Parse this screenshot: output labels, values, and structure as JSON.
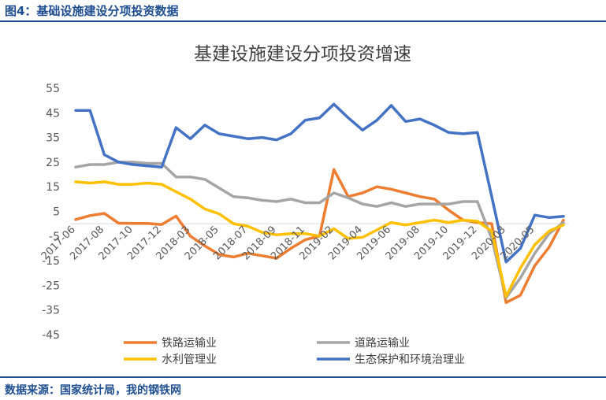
{
  "header": {
    "title": "图4：基础设施建设分项投资数据"
  },
  "footer": {
    "source": "数据来源：国家统计局，我的钢铁网"
  },
  "chart_data": {
    "type": "line",
    "title": "基建设施建设分项投资增速",
    "xlabel": "",
    "ylabel": "",
    "ylim": [
      -45,
      55
    ],
    "y_ticks": [
      55,
      45,
      35,
      25,
      15,
      5,
      -5,
      -15,
      -25,
      -35,
      -45
    ],
    "x": [
      "2017-06",
      "2017-07",
      "2017-08",
      "2017-09",
      "2017-10",
      "2017-11",
      "2017-12",
      "2018-01",
      "2018-03",
      "2018-04",
      "2018-05",
      "2018-06",
      "2018-07",
      "2018-08",
      "2018-09",
      "2018-10",
      "2018-11",
      "2018-12",
      "2019-02",
      "2019-03",
      "2019-04",
      "2019-05",
      "2019-06",
      "2019-07",
      "2019-08",
      "2019-09",
      "2019-10",
      "2019-11",
      "2019-12",
      "2020-01",
      "2020-03",
      "2020-04",
      "2020-05",
      "2020-06",
      "2020-07"
    ],
    "x_tick_labels": [
      "2017-06",
      "2017-08",
      "2017-10",
      "2017-12",
      "2018-03",
      "2018-05",
      "2018-07",
      "2018-09",
      "2018-11",
      "2019-02",
      "2019-04",
      "2019-06",
      "2019-08",
      "2019-10",
      "2019-12",
      "2020-03",
      "2020-05"
    ],
    "legend": "bottom",
    "grid": false,
    "series": [
      {
        "name": "铁路运输业",
        "color": "#ed7d31",
        "values": [
          1.7,
          3.3,
          4.2,
          0.2,
          0.1,
          0.1,
          -0.3,
          3.1,
          -5.0,
          -9.0,
          -12.5,
          -13.5,
          -12.0,
          -13.0,
          -14.0,
          -10.0,
          -6.5,
          -5.0,
          22.0,
          11.0,
          12.5,
          15.0,
          14.0,
          12.5,
          11.0,
          10.0,
          5.5,
          1.5,
          0.5,
          0.0,
          -32.0,
          -29.0,
          -17.0,
          -9.5,
          1.5
        ]
      },
      {
        "name": "道路运输业",
        "color": "#a5a5a5",
        "values": [
          23.0,
          24.0,
          24.0,
          25.0,
          25.0,
          24.5,
          24.5,
          19.0,
          19.0,
          18.0,
          14.5,
          11.0,
          10.5,
          9.5,
          9.0,
          10.0,
          8.5,
          8.5,
          12.5,
          10.5,
          8.0,
          7.0,
          8.5,
          7.0,
          8.0,
          8.0,
          8.0,
          9.0,
          9.0,
          -6.0,
          -30.0,
          -22.0,
          -12.0,
          -4.0,
          0.5
        ]
      },
      {
        "name": "水利管理业",
        "color": "#ffc000",
        "values": [
          17.0,
          16.5,
          17.0,
          16.0,
          16.0,
          16.5,
          16.0,
          13.0,
          10.0,
          6.0,
          4.0,
          0.0,
          -1.0,
          -3.5,
          -4.5,
          -4.0,
          -4.0,
          -5.0,
          -2.0,
          -6.0,
          -5.5,
          -2.5,
          0.5,
          -0.5,
          0.5,
          1.5,
          0.5,
          1.5,
          1.0,
          -3.0,
          -29.5,
          -18.0,
          -8.5,
          -3.0,
          -0.5
        ]
      },
      {
        "name": "生态保护和环境治理业",
        "color": "#4472c4",
        "values": [
          46.0,
          46.0,
          28.0,
          25.0,
          24.0,
          23.5,
          23.0,
          39.0,
          34.5,
          40.0,
          36.5,
          35.5,
          34.5,
          35.0,
          34.0,
          36.5,
          42.0,
          43.0,
          48.5,
          43.0,
          38.0,
          42.0,
          48.0,
          41.5,
          42.5,
          40.0,
          37.0,
          36.5,
          37.0,
          11.0,
          -15.5,
          -10.0,
          3.5,
          2.5,
          3.0
        ]
      }
    ]
  }
}
